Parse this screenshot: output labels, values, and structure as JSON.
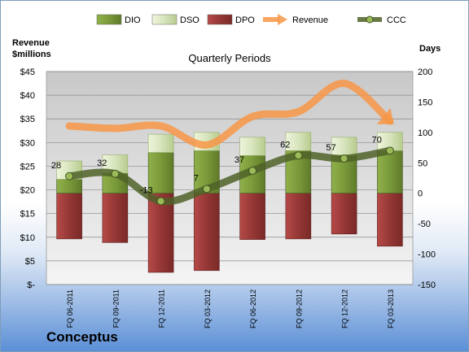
{
  "company": "Conceptus",
  "chart_data": {
    "type": "bar",
    "title": "Quarterly Periods",
    "left_axis_title": [
      "Revenue",
      "$millions"
    ],
    "right_axis_title": "Days",
    "legend": [
      {
        "name": "DIO",
        "kind": "bar",
        "color": "#77933c"
      },
      {
        "name": "DSO",
        "kind": "bar",
        "color": "#d7e4bd"
      },
      {
        "name": "DPO",
        "kind": "bar",
        "color": "#953735"
      },
      {
        "name": "Revenue",
        "kind": "line",
        "color": "#f79646"
      },
      {
        "name": "CCC",
        "kind": "line",
        "color": "#4f6228"
      }
    ],
    "legend_position": "top",
    "categories": [
      "FQ 06-2011",
      "FQ 09-2011",
      "FQ 12-2011",
      "FQ 03-2012",
      "FQ 06-2012",
      "FQ 09-2012",
      "FQ 12-2012",
      "FQ 03-2013"
    ],
    "series": [
      {
        "name": "DIO",
        "axis": "right",
        "values": [
          23,
          33,
          67,
          70,
          62,
          70,
          62,
          70
        ]
      },
      {
        "name": "DSO",
        "axis": "right",
        "values": [
          30,
          30,
          30,
          30,
          30,
          30,
          30,
          30
        ]
      },
      {
        "name": "DPO",
        "axis": "right",
        "values": [
          -75,
          -81,
          -130,
          -127,
          -76,
          -75,
          -67,
          -87
        ]
      },
      {
        "name": "Revenue",
        "axis": "left",
        "values": [
          33.5,
          33.0,
          33.5,
          29.5,
          35.5,
          36.5,
          42.5,
          34.5
        ]
      },
      {
        "name": "CCC",
        "axis": "right",
        "values": [
          28,
          32,
          -13,
          7,
          37,
          62,
          57,
          70
        ]
      }
    ],
    "ccc_labels": [
      "28",
      "32",
      "-13",
      "7",
      "37",
      "62",
      "57",
      "70"
    ],
    "left_axis": {
      "ylim": [
        0,
        45
      ],
      "ticks": [
        "$-",
        "$5",
        "$10",
        "$15",
        "$20",
        "$25",
        "$30",
        "$35",
        "$40",
        "$45"
      ]
    },
    "right_axis": {
      "ylim": [
        -150,
        200
      ],
      "ticks": [
        "-150",
        "-100",
        "-50",
        "0",
        "50",
        "100",
        "150",
        "200"
      ]
    },
    "grid": true
  }
}
